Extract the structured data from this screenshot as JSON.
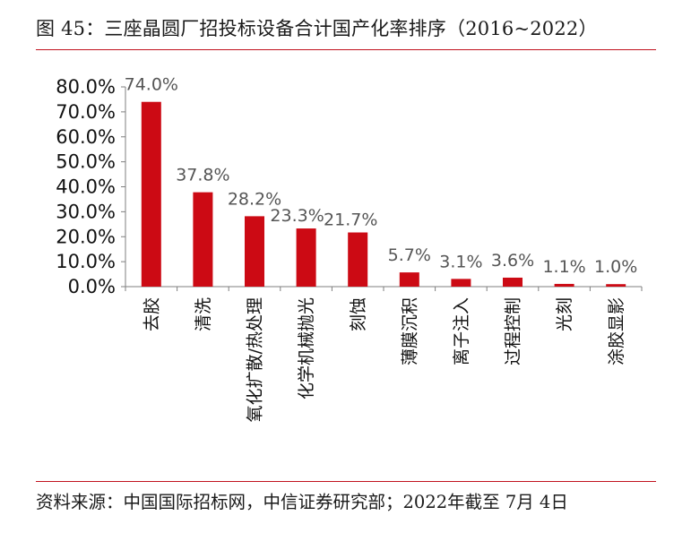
{
  "figure": {
    "title": "图 45：三座晶圆厂招投标设备合计国产化率排序（2016~2022）",
    "source": "资料来源：中国国际招标网，中信证券研究部；2022年截至 7月 4日"
  },
  "chart_data": {
    "type": "bar",
    "title": "图 45：三座晶圆厂招投标设备合计国产化率排序（2016~2022）",
    "categories": [
      "去胶",
      "清洗",
      "氧化扩散/热处理",
      "化学机械抛光",
      "刻蚀",
      "薄膜沉积",
      "离子注入",
      "过程控制",
      "光刻",
      "涂胶显影"
    ],
    "values": [
      74.0,
      37.8,
      28.2,
      23.3,
      21.7,
      5.7,
      3.1,
      3.6,
      1.1,
      1.0
    ],
    "data_labels": [
      "74.0%",
      "37.8%",
      "28.2%",
      "23.3%",
      "21.7%",
      "5.7%",
      "3.1%",
      "3.6%",
      "1.1%",
      "1.0%"
    ],
    "y_ticks": [
      "0.0%",
      "10.0%",
      "20.0%",
      "30.0%",
      "40.0%",
      "50.0%",
      "60.0%",
      "70.0%",
      "80.0%"
    ],
    "ylim": [
      0,
      80
    ],
    "xlabel": "",
    "ylabel": "",
    "grid": false,
    "legend": "none",
    "colors": {
      "bar": "#cc0a14",
      "axis": "#7f7f7f",
      "rule": "#c1121f",
      "data_label": "#555555"
    }
  }
}
